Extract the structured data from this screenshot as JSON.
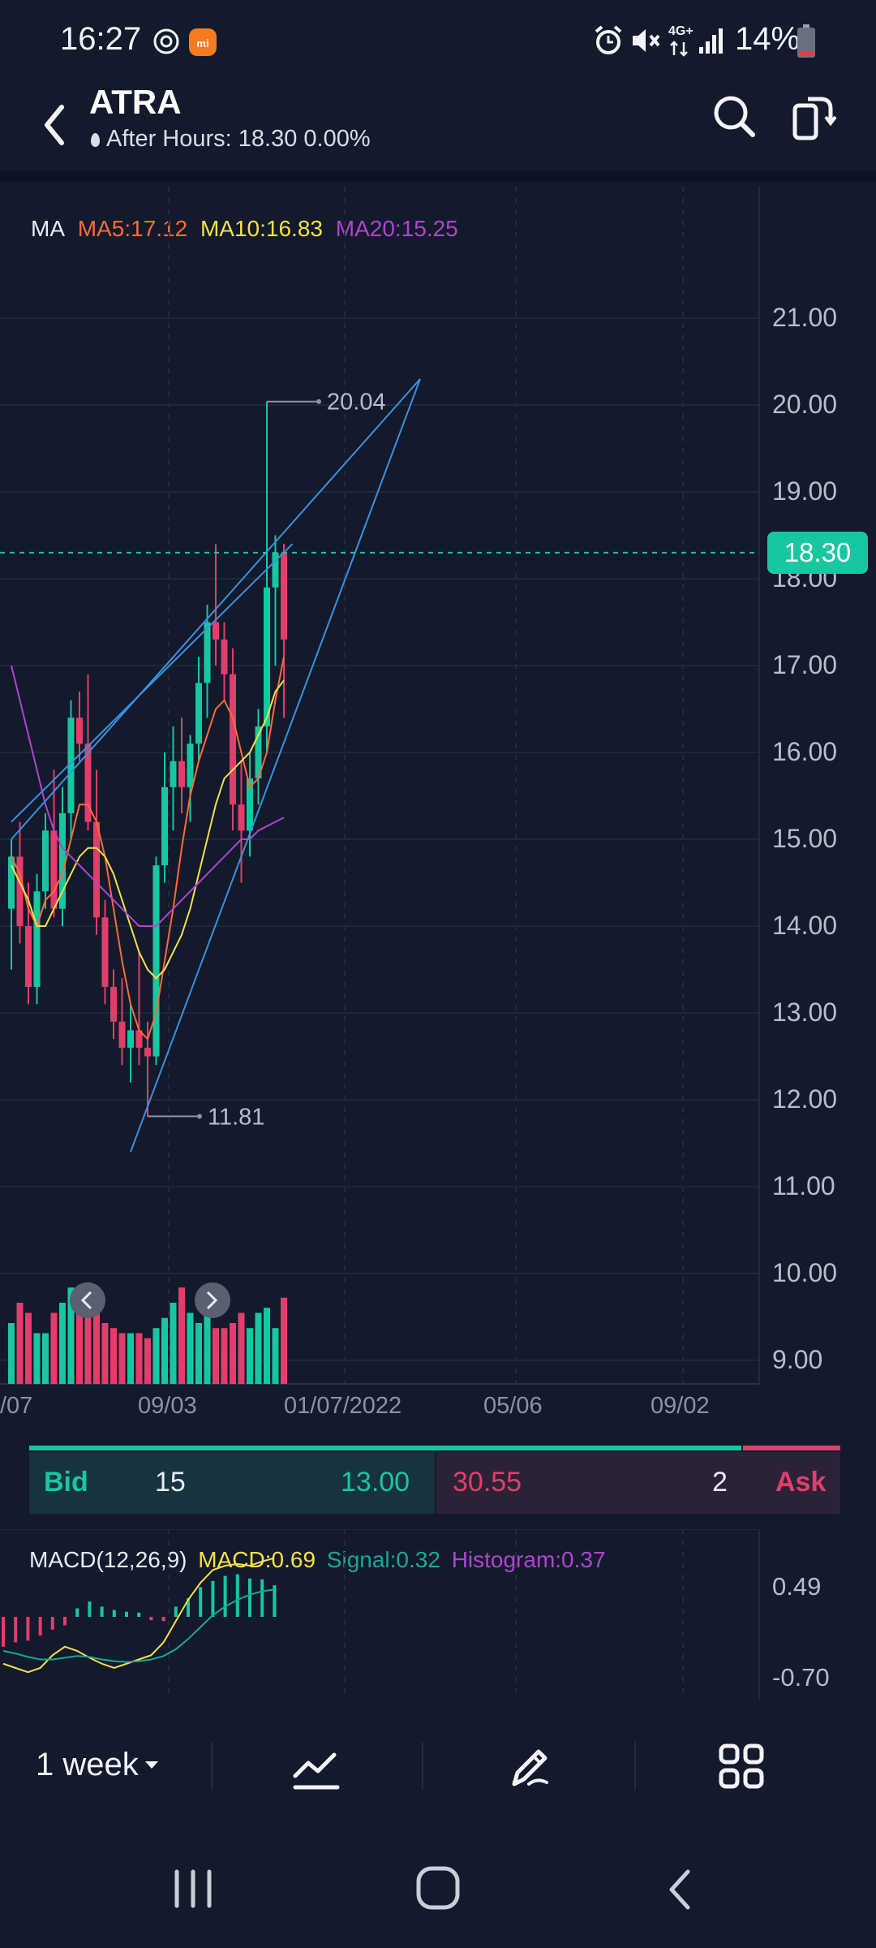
{
  "status_bar": {
    "time": "16:27",
    "battery_pct": "14%",
    "network": "4G+",
    "icons": [
      "focus-icon",
      "mi-app-icon",
      "alarm-icon",
      "mute-icon",
      "network-icon",
      "signal-icon",
      "battery-icon"
    ]
  },
  "header": {
    "ticker": "ATRA",
    "after_hours": "After Hours: 18.30 0.00%",
    "icons": [
      "back-icon",
      "search-icon",
      "rotate-icon"
    ]
  },
  "chart_legend": {
    "ma": "MA",
    "ma5": "MA5:17.12",
    "ma10": "MA10:16.83",
    "ma20": "MA20:15.25"
  },
  "colors": {
    "up": "#18c7a0",
    "down": "#e23e6b",
    "ma5": "#ff6a3a",
    "ma10": "#f3e04a",
    "ma20": "#b044d0",
    "trendline": "#3a92e0",
    "background": "#131a2c"
  },
  "chart_data": [
    {
      "type": "candlestick",
      "title": "",
      "interval": "1 week",
      "y_ticks": [
        "21.00",
        "20.00",
        "19.00",
        "18.00",
        "17.00",
        "16.00",
        "15.00",
        "14.00",
        "13.00",
        "12.00",
        "11.00",
        "10.00",
        "9.00"
      ],
      "x_ticks": [
        "/07",
        "09/03",
        "01/07/2022",
        "05/06",
        "09/02"
      ],
      "ylim": [
        9,
        21.5
      ],
      "last_price": "18.30",
      "high_marker": "20.04",
      "low_marker": "11.81",
      "candles": [
        [
          14.2,
          15.0,
          13.5,
          14.8
        ],
        [
          14.8,
          15.2,
          13.8,
          14.0
        ],
        [
          14.0,
          14.5,
          13.1,
          13.3
        ],
        [
          13.3,
          14.6,
          13.1,
          14.4
        ],
        [
          14.4,
          15.3,
          14.2,
          15.1
        ],
        [
          15.1,
          15.8,
          14.1,
          14.2
        ],
        [
          14.2,
          15.6,
          14.0,
          15.3
        ],
        [
          15.3,
          16.6,
          15.0,
          16.4
        ],
        [
          16.4,
          16.7,
          15.9,
          16.1
        ],
        [
          16.1,
          16.9,
          15.1,
          15.2
        ],
        [
          15.2,
          15.8,
          13.9,
          14.1
        ],
        [
          14.1,
          14.3,
          13.1,
          13.3
        ],
        [
          13.3,
          13.5,
          12.7,
          12.9
        ],
        [
          12.9,
          13.4,
          12.4,
          12.6
        ],
        [
          12.6,
          13.1,
          12.2,
          12.8
        ],
        [
          12.8,
          13.7,
          12.4,
          12.6
        ],
        [
          12.6,
          12.9,
          11.81,
          12.5
        ],
        [
          12.5,
          14.8,
          12.4,
          14.7
        ],
        [
          14.7,
          16.0,
          14.5,
          15.6
        ],
        [
          15.6,
          16.3,
          15.1,
          15.9
        ],
        [
          15.9,
          16.4,
          15.3,
          15.6
        ],
        [
          15.6,
          16.2,
          15.2,
          16.1
        ],
        [
          16.1,
          17.1,
          15.9,
          16.8
        ],
        [
          16.8,
          17.7,
          16.4,
          17.5
        ],
        [
          17.5,
          18.4,
          17.0,
          17.3
        ],
        [
          17.3,
          17.5,
          16.6,
          16.9
        ],
        [
          16.9,
          17.2,
          15.1,
          15.4
        ],
        [
          15.4,
          15.9,
          14.5,
          15.1
        ],
        [
          15.1,
          16.0,
          14.8,
          15.7
        ],
        [
          15.7,
          16.5,
          15.4,
          16.3
        ],
        [
          16.3,
          20.04,
          16.0,
          17.9
        ],
        [
          17.9,
          18.5,
          17.0,
          18.3
        ],
        [
          18.3,
          18.4,
          16.4,
          17.3
        ]
      ],
      "volumes": [
        0.6,
        0.8,
        0.7,
        0.5,
        0.5,
        0.7,
        0.8,
        0.95,
        0.75,
        1.0,
        0.7,
        0.6,
        0.55,
        0.5,
        0.5,
        0.5,
        0.45,
        0.55,
        0.65,
        0.8,
        0.95,
        0.7,
        0.6,
        0.75,
        0.55,
        0.55,
        0.6,
        0.7,
        0.55,
        0.7,
        0.75,
        0.55,
        0.85
      ],
      "ma5": [
        14.8,
        14.6,
        14.2,
        14.0,
        14.3,
        14.4,
        14.6,
        15.0,
        15.4,
        15.4,
        15.2,
        14.8,
        14.2,
        13.6,
        13.1,
        12.8,
        12.7,
        13.0,
        13.6,
        14.2,
        14.9,
        15.5,
        15.9,
        16.2,
        16.5,
        16.6,
        16.4,
        16.0,
        15.6,
        15.7,
        16.0,
        16.6,
        17.1
      ],
      "ma10": [
        14.7,
        14.5,
        14.3,
        14.0,
        14.0,
        14.2,
        14.4,
        14.6,
        14.8,
        14.9,
        14.9,
        14.8,
        14.6,
        14.3,
        14.0,
        13.7,
        13.5,
        13.4,
        13.5,
        13.7,
        13.9,
        14.2,
        14.6,
        15.0,
        15.4,
        15.7,
        15.8,
        15.9,
        16.0,
        16.2,
        16.4,
        16.7,
        16.83
      ],
      "ma20_visible_segments": "partial",
      "ma20": [
        17.0,
        16.6,
        16.2,
        15.8,
        15.4,
        15.1,
        14.9,
        14.8,
        14.7,
        14.6,
        14.5,
        14.4,
        14.3,
        14.2,
        14.1,
        14.0,
        14.0,
        14.0,
        14.1,
        14.2,
        14.3,
        14.4,
        14.5,
        14.6,
        14.7,
        14.8,
        14.9,
        15.0,
        15.0,
        15.1,
        15.15,
        15.2,
        15.25
      ],
      "trendlines": [
        {
          "from": [
            0,
            15.0
          ],
          "to": [
            48,
            20.3
          ]
        },
        {
          "from": [
            14,
            11.4
          ],
          "to": [
            48,
            20.3
          ]
        },
        {
          "from": [
            0,
            15.2
          ],
          "to": [
            33,
            18.4
          ]
        }
      ]
    },
    {
      "type": "macd",
      "params": "MACD(12,26,9)",
      "macd_label": "MACD:0.69",
      "signal_label": "Signal:0.32",
      "histogram_label": "Histogram:0.37",
      "y_ticks": [
        "0.49",
        "-0.70"
      ],
      "ylim": [
        -0.95,
        0.95
      ],
      "macd": [
        -0.55,
        -0.6,
        -0.65,
        -0.6,
        -0.45,
        -0.35,
        -0.4,
        -0.48,
        -0.55,
        -0.6,
        -0.55,
        -0.5,
        -0.45,
        -0.3,
        -0.05,
        0.2,
        0.4,
        0.55,
        0.6,
        0.62,
        0.6,
        0.65,
        0.69
      ],
      "signal": [
        -0.4,
        -0.43,
        -0.47,
        -0.5,
        -0.5,
        -0.48,
        -0.46,
        -0.47,
        -0.5,
        -0.52,
        -0.53,
        -0.52,
        -0.5,
        -0.46,
        -0.38,
        -0.26,
        -0.12,
        0.02,
        0.12,
        0.2,
        0.26,
        0.3,
        0.32
      ],
      "histogram": [
        -0.35,
        -0.3,
        -0.28,
        -0.22,
        -0.15,
        -0.1,
        0.1,
        0.18,
        0.12,
        0.08,
        0.06,
        0.05,
        -0.04,
        -0.05,
        0.12,
        0.22,
        0.35,
        0.42,
        0.48,
        0.5,
        0.45,
        0.44,
        0.37
      ]
    }
  ],
  "bid_ask": {
    "bid_label": "Bid",
    "bid_size": "15",
    "bid_price": "13.00",
    "ask_price": "30.55",
    "ask_size": "2",
    "ask_label": "Ask"
  },
  "macd_legend": {
    "params": "MACD(12,26,9)",
    "macd": "MACD:0.69",
    "signal": "Signal:0.32",
    "histogram": "Histogram:0.37"
  },
  "toolbar": {
    "period": "1 week",
    "icons": [
      "indicator-icon",
      "draw-icon",
      "more-grid-icon"
    ]
  },
  "nav_bar": {
    "icons": [
      "recent-apps-icon",
      "home-icon",
      "back-nav-icon"
    ]
  }
}
